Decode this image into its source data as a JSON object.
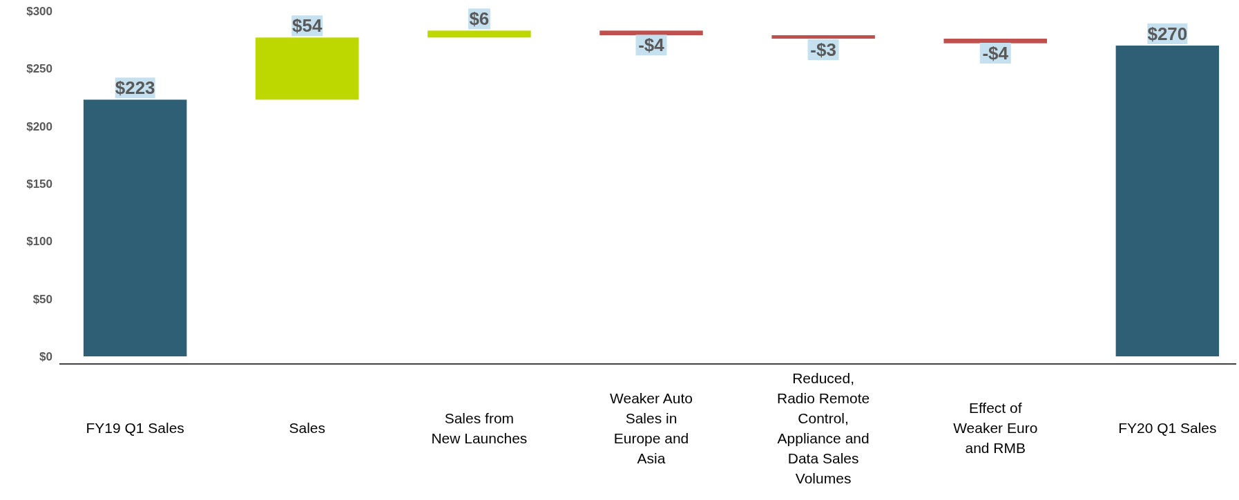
{
  "chart_data": {
    "type": "bar",
    "categories": [
      "FY19 Q1 Sales",
      "Sales",
      "Sales from New Launches",
      "Weaker Auto Sales in Europe and Asia",
      "Reduced, Radio Remote Control, Appliance and Data Sales Volumes",
      "Effect of Weaker Euro and RMB",
      "FY20 Q1 Sales"
    ],
    "values": [
      223,
      54,
      6,
      -4,
      -3,
      -4,
      270
    ],
    "base": [
      0,
      223,
      277,
      283,
      279,
      276,
      0
    ],
    "colors": [
      "#2e5f75",
      "#bcd800",
      "#bcd800",
      "#c0504d",
      "#c0504d",
      "#c0504d",
      "#2e5f75"
    ],
    "value_labels": [
      "$223",
      "$54",
      "$6",
      "-$4",
      "-$3",
      "-$4",
      "$270"
    ],
    "ylim": [
      0,
      300
    ],
    "yticks": [
      {
        "value": 0,
        "label": "$0"
      },
      {
        "value": 50,
        "label": "$50"
      },
      {
        "value": 100,
        "label": "$100"
      },
      {
        "value": 150,
        "label": "$150"
      },
      {
        "value": 200,
        "label": "$200"
      },
      {
        "value": 250,
        "label": "$250"
      },
      {
        "value": 300,
        "label": "$300"
      }
    ],
    "grid": false
  }
}
